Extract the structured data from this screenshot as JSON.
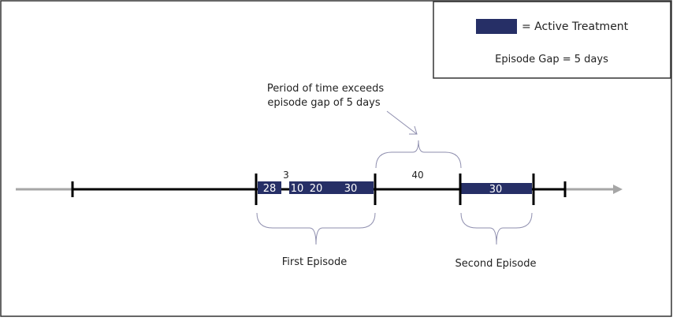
{
  "colors": {
    "treatment": "#262f66",
    "axis": "#000000",
    "arrow": "#a6a6a6",
    "brace": "#8e8eae",
    "border": "#333333"
  },
  "legend": {
    "swatch_label": "= Active Treatment",
    "gap_label": "Episode Gap = 5 days"
  },
  "annotation": {
    "line1": "Period of time exceeds",
    "line2": "episode gap of 5 days"
  },
  "bars": [
    {
      "value": "28"
    },
    {
      "value": "10"
    },
    {
      "value": "20"
    },
    {
      "value": "30"
    },
    {
      "value": "30"
    }
  ],
  "gaps": {
    "small": "3",
    "large": "40"
  },
  "episodes": {
    "first": "First Episode",
    "second": "Second Episode"
  }
}
